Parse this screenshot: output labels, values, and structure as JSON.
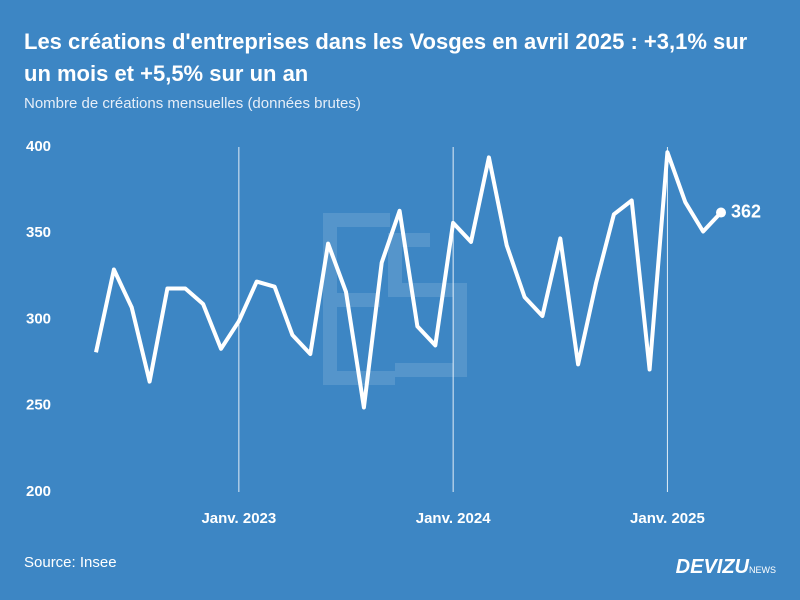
{
  "chart_data": {
    "type": "line",
    "title": "Les créations d'entreprises dans les Vosges en avril 2025 : +3,1% sur un mois et +5,5% sur un an",
    "subtitle": "Nombre de créations mensuelles (données brutes)",
    "source": "Source: Insee",
    "brand": "DEVIZU",
    "brand_suffix": "NEWS",
    "categories": [
      null,
      null,
      null,
      null,
      null,
      null,
      null,
      null,
      "Janv. 2023",
      null,
      null,
      null,
      null,
      null,
      null,
      null,
      null,
      null,
      null,
      null,
      "Janv. 2024",
      null,
      null,
      null,
      null,
      null,
      null,
      null,
      null,
      null,
      null,
      null,
      "Janv. 2025",
      null,
      null,
      null
    ],
    "values": [
      281,
      329,
      307,
      264,
      318,
      318,
      309,
      283,
      299,
      322,
      319,
      291,
      280,
      344,
      316,
      249,
      333,
      363,
      296,
      285,
      356,
      345,
      394,
      343,
      313,
      302,
      347,
      274,
      321,
      361,
      369,
      271,
      397,
      368,
      351,
      362
    ],
    "color": "#ffffff",
    "ylim": [
      200,
      400
    ],
    "yticks": [
      200,
      250,
      300,
      350,
      400
    ]
  }
}
